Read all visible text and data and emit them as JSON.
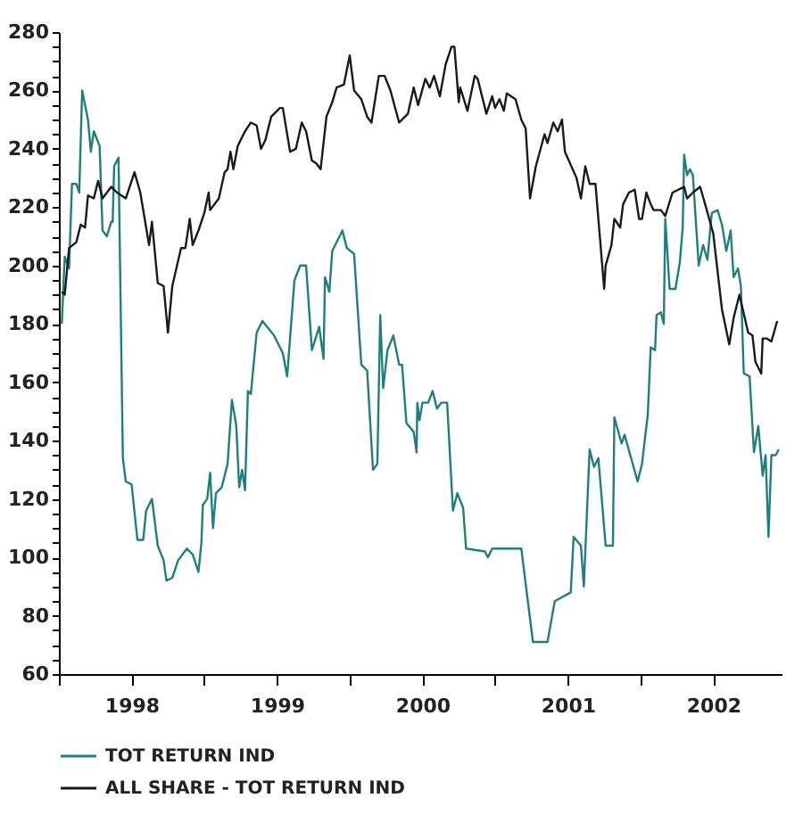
{
  "chart_data": {
    "type": "line",
    "xlim": [
      1998.0,
      2002.97
    ],
    "ylim": [
      60,
      280
    ],
    "xticks": [
      {
        "value": 1998.0,
        "label": null
      },
      {
        "value": 1998.5,
        "label": "1998"
      },
      {
        "value": 1999.0,
        "label": null
      },
      {
        "value": 1999.5,
        "label": "1999"
      },
      {
        "value": 2000.0,
        "label": null
      },
      {
        "value": 2000.5,
        "label": "2000"
      },
      {
        "value": 2001.0,
        "label": null
      },
      {
        "value": 2001.5,
        "label": "2001"
      },
      {
        "value": 2002.0,
        "label": null
      },
      {
        "value": 2002.5,
        "label": "2002"
      }
    ],
    "yticks": [
      60,
      {
        "value": 65,
        "label": null
      },
      {
        "value": 70,
        "label": null
      },
      {
        "value": 75,
        "label": null
      },
      80,
      {
        "value": 85,
        "label": null
      },
      {
        "value": 90,
        "label": null
      },
      {
        "value": 95,
        "label": null
      },
      100,
      {
        "value": 105,
        "label": null
      },
      {
        "value": 110,
        "label": null
      },
      {
        "value": 115,
        "label": null
      },
      120,
      {
        "value": 125,
        "label": null
      },
      {
        "value": 130,
        "label": null
      },
      {
        "value": 135,
        "label": null
      },
      140,
      {
        "value": 145,
        "label": null
      },
      {
        "value": 150,
        "label": null
      },
      {
        "value": 155,
        "label": null
      },
      160,
      {
        "value": 165,
        "label": null
      },
      {
        "value": 170,
        "label": null
      },
      {
        "value": 175,
        "label": null
      },
      180,
      {
        "value": 185,
        "label": null
      },
      {
        "value": 190,
        "label": null
      },
      {
        "value": 195,
        "label": null
      },
      200,
      {
        "value": 205,
        "label": null
      },
      {
        "value": 210,
        "label": null
      },
      {
        "value": 215,
        "label": null
      },
      220,
      {
        "value": 225,
        "label": null
      },
      {
        "value": 230,
        "label": null
      },
      {
        "value": 235,
        "label": null
      },
      240,
      {
        "value": 245,
        "label": null
      },
      {
        "value": 250,
        "label": null
      },
      {
        "value": 255,
        "label": null
      },
      260,
      {
        "value": 265,
        "label": null
      },
      {
        "value": 270,
        "label": null
      },
      {
        "value": 275,
        "label": null
      },
      280
    ],
    "grid": false,
    "legend": "bottom",
    "line_style": "solid",
    "marker": "none",
    "series": [
      {
        "name": "TOT RETURN IND",
        "color": "#1f7f7f",
        "x": [
          1998.02,
          1998.04,
          1998.07,
          1998.09,
          1998.12,
          1998.14,
          1998.16,
          1998.2,
          1998.22,
          1998.24,
          1998.28,
          1998.3,
          1998.33,
          1998.36,
          1998.37,
          1998.38,
          1998.41,
          1998.44,
          1998.46,
          1998.5,
          1998.54,
          1998.58,
          1998.6,
          1998.64,
          1998.68,
          1998.72,
          1998.74,
          1998.78,
          1998.82,
          1998.88,
          1998.92,
          1998.96,
          1998.98,
          1998.99,
          1999.02,
          1999.04,
          1999.06,
          1999.08,
          1999.12,
          1999.16,
          1999.19,
          1999.22,
          1999.24,
          1999.26,
          1999.28,
          1999.3,
          1999.32,
          1999.36,
          1999.4,
          1999.48,
          1999.5,
          1999.54,
          1999.57,
          1999.62,
          1999.66,
          1999.7,
          1999.74,
          1999.79,
          1999.82,
          1999.83,
          1999.86,
          1999.88,
          1999.95,
          1999.98,
          2000.03,
          2000.08,
          2000.12,
          2000.16,
          2000.19,
          2000.21,
          2000.23,
          2000.26,
          2000.3,
          2000.34,
          2000.36,
          2000.39,
          2000.44,
          2000.46,
          2000.465,
          2000.48,
          2000.5,
          2000.54,
          2000.57,
          2000.6,
          2000.63,
          2000.67,
          2000.71,
          2000.74,
          2000.78,
          2000.8,
          2000.93,
          2000.95,
          2000.98,
          2001.18,
          2001.26,
          2001.36,
          2001.41,
          2001.52,
          2001.54,
          2001.59,
          2001.61,
          2001.65,
          2001.68,
          2001.71,
          2001.76,
          2001.81,
          2001.82,
          2001.87,
          2001.89,
          2001.98,
          2002.01,
          2002.05,
          2002.07,
          2002.1,
          2002.11,
          2002.14,
          2002.16,
          2002.17,
          2002.2,
          2002.24,
          2002.27,
          2002.29,
          2002.3,
          2002.32,
          2002.34,
          2002.36,
          2002.4,
          2002.43,
          2002.46,
          2002.49,
          2002.53,
          2002.56,
          2002.59,
          2002.62,
          2002.64,
          2002.67,
          2002.69,
          2002.71,
          2002.75,
          2002.78,
          2002.81,
          2002.84,
          2002.86,
          2002.88,
          2002.9,
          2002.93,
          2002.95
        ],
        "values": [
          180,
          203,
          199,
          228,
          228,
          225,
          260,
          250,
          239,
          246,
          241,
          212,
          210,
          215,
          215,
          234,
          237,
          134,
          126,
          125,
          106,
          106,
          116,
          120,
          104,
          99,
          92,
          93,
          99,
          103,
          101,
          95,
          105,
          118,
          120,
          129,
          110,
          122,
          124,
          132,
          154,
          145,
          124,
          130,
          123,
          157,
          156,
          177,
          181,
          176,
          174,
          170,
          162,
          195,
          200,
          200,
          171,
          179,
          168,
          196,
          191,
          205,
          212,
          206,
          204,
          166,
          164,
          130,
          132,
          183,
          158,
          171,
          176,
          166,
          166,
          146,
          143,
          136,
          153,
          147,
          153,
          153,
          157,
          151,
          153,
          153,
          116,
          122,
          117,
          103,
          102,
          100,
          103,
          103,
          71,
          71,
          85,
          88,
          107,
          104,
          90,
          137,
          131,
          134,
          104,
          104,
          148,
          139,
          142,
          126,
          132,
          149,
          172,
          171,
          183,
          184,
          180,
          216,
          192,
          192,
          201,
          213,
          238,
          231,
          233,
          231,
          200,
          207,
          202,
          218,
          219,
          214,
          205,
          212,
          196,
          199,
          193,
          163,
          162,
          136,
          145,
          128,
          135,
          107,
          135,
          135,
          137
        ]
      },
      {
        "name": "ALL SHARE - TOT RETURN IND",
        "color": "#1a1a1a",
        "x": [
          1998.02,
          1998.04,
          1998.07,
          1998.12,
          1998.15,
          1998.18,
          1998.2,
          1998.24,
          1998.27,
          1998.3,
          1998.36,
          1998.4,
          1998.46,
          1998.52,
          1998.56,
          1998.62,
          1998.64,
          1998.68,
          1998.72,
          1998.75,
          1998.78,
          1998.84,
          1998.87,
          1998.9,
          1998.92,
          1998.96,
          1999.0,
          1999.03,
          1999.04,
          1999.1,
          1999.14,
          1999.16,
          1999.18,
          1999.2,
          1999.23,
          1999.28,
          1999.32,
          1999.36,
          1999.39,
          1999.42,
          1999.46,
          1999.52,
          1999.54,
          1999.59,
          1999.63,
          1999.67,
          1999.7,
          1999.74,
          1999.77,
          1999.8,
          1999.84,
          1999.88,
          1999.91,
          1999.96,
          2000.0,
          2000.03,
          2000.08,
          2000.12,
          2000.15,
          2000.2,
          2000.24,
          2000.28,
          2000.34,
          2000.4,
          2000.44,
          2000.47,
          2000.52,
          2000.55,
          2000.58,
          2000.62,
          2000.66,
          2000.7,
          2000.72,
          2000.75,
          2000.76,
          2000.81,
          2000.86,
          2000.88,
          2000.94,
          2000.98,
          2001.0,
          2001.03,
          2001.06,
          2001.08,
          2001.14,
          2001.18,
          2001.21,
          2001.24,
          2001.28,
          2001.34,
          2001.36,
          2001.4,
          2001.43,
          2001.46,
          2001.48,
          2001.56,
          2001.59,
          2001.62,
          2001.65,
          2001.69,
          2001.75,
          2001.76,
          2001.8,
          2001.82,
          2001.86,
          2001.88,
          2001.92,
          2001.96,
          2001.99,
          2002.01,
          2002.04,
          2002.07,
          2002.09,
          2002.14,
          2002.17,
          2002.22,
          2002.26,
          2002.3,
          2002.32,
          2002.36,
          2002.41,
          2002.45,
          2002.5,
          2002.56,
          2002.61,
          2002.64,
          2002.68,
          2002.74,
          2002.77,
          2002.79,
          2002.83,
          2002.84,
          2002.87,
          2002.9,
          2002.94
        ],
        "values": [
          191,
          190,
          206,
          208,
          214,
          213,
          224,
          223,
          229,
          223,
          227,
          225,
          223,
          232,
          225,
          207,
          215,
          194,
          193,
          177,
          193,
          206,
          206,
          216,
          207,
          212,
          218,
          225,
          219,
          223,
          232,
          233,
          239,
          233,
          241,
          246,
          249,
          248,
          240,
          243,
          251,
          254,
          254,
          239,
          240,
          249,
          246,
          236,
          235,
          233,
          251,
          256,
          261,
          262,
          272,
          260,
          257,
          251,
          249,
          265,
          265,
          260,
          249,
          252,
          261,
          255,
          264,
          261,
          265,
          258,
          269,
          275,
          275,
          256,
          261,
          253,
          265,
          264,
          252,
          258,
          254,
          257,
          253,
          259,
          257,
          250,
          247,
          223,
          234,
          245,
          242,
          249,
          246,
          250,
          239,
          230,
          223,
          234,
          228,
          228,
          192,
          200,
          207,
          216,
          213,
          221,
          225,
          226,
          216,
          216,
          225,
          221,
          219,
          219,
          217,
          225,
          226,
          227,
          223,
          225,
          227,
          220,
          211,
          185,
          173,
          182,
          190,
          177,
          176,
          167,
          163,
          175,
          175,
          174,
          181
        ]
      }
    ]
  }
}
